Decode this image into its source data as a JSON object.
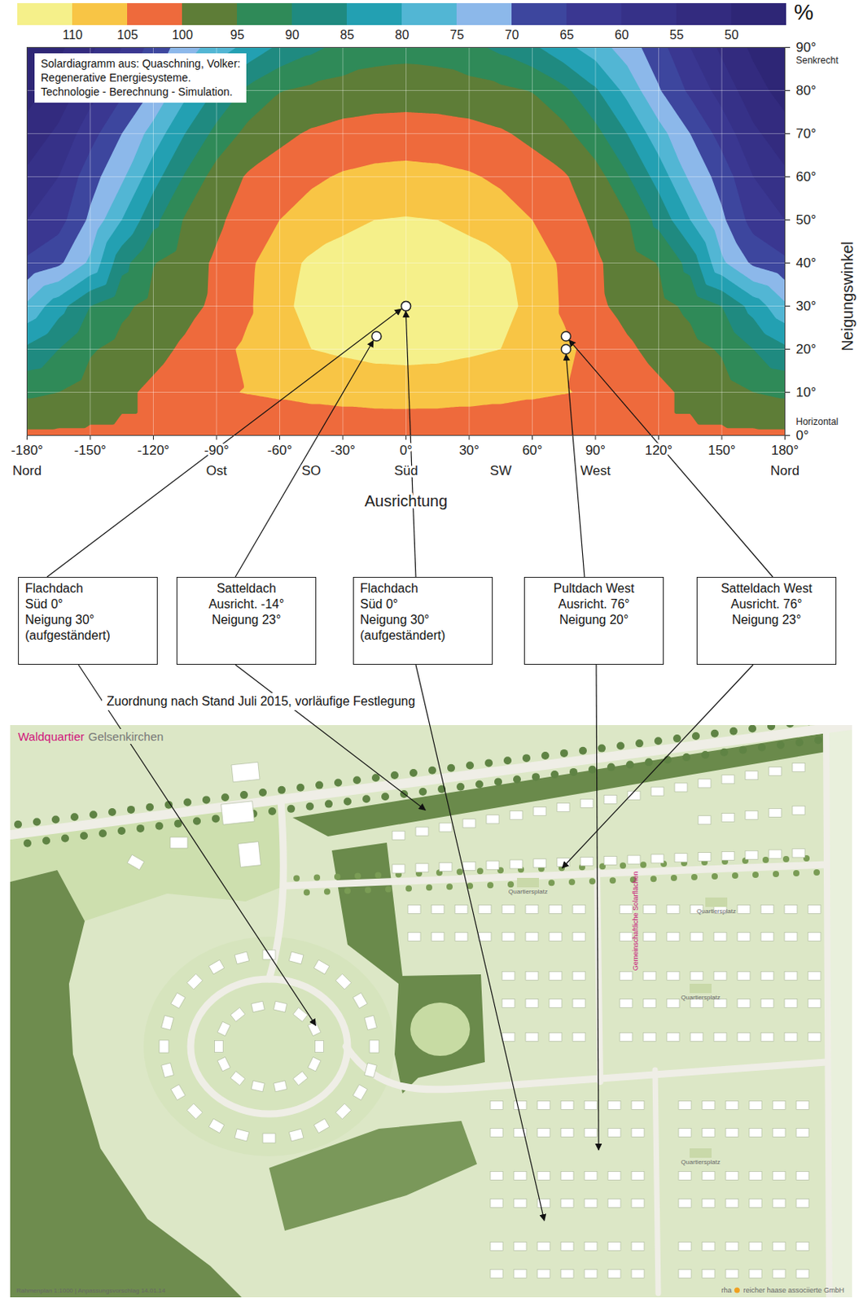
{
  "chart_data": {
    "type": "contour",
    "xlabel": "Ausrichtung",
    "ylabel": "Neigungswinkel",
    "x": [
      -180,
      -165,
      -150,
      -135,
      -120,
      -105,
      -90,
      -75,
      -60,
      -45,
      -30,
      -15,
      0,
      15,
      30,
      45,
      60,
      75,
      90,
      105,
      120,
      135,
      150,
      165,
      180
    ],
    "y": [
      0,
      10,
      20,
      30,
      40,
      50,
      60,
      70,
      80,
      90
    ],
    "z": [
      [
        101,
        101,
        101,
        101,
        101,
        101,
        101,
        101,
        101,
        101,
        101,
        101,
        101,
        101,
        101,
        101,
        101,
        101,
        101,
        101,
        101,
        101,
        101,
        101,
        101
      ],
      [
        94,
        95,
        97,
        99,
        101,
        103,
        104.5,
        105.2,
        105.8,
        106.5,
        107,
        107.4,
        107.5,
        107.4,
        107,
        106.5,
        105.8,
        105.2,
        104.5,
        103,
        101,
        99,
        97,
        95,
        94
      ],
      [
        86,
        90,
        94.5,
        96.5,
        98.5,
        100.8,
        103.5,
        106,
        108.5,
        110,
        110.7,
        111.3,
        111.5,
        111.3,
        110.7,
        110,
        108.5,
        106,
        103.5,
        100.8,
        98.5,
        96.5,
        94.5,
        90,
        86
      ],
      [
        76,
        83,
        90,
        94,
        96.5,
        98.5,
        101,
        104.3,
        108.8,
        111.5,
        112.3,
        112.8,
        113,
        112.8,
        112.3,
        111.5,
        108.8,
        104.3,
        101,
        98.5,
        96.5,
        94,
        90,
        83,
        76
      ],
      [
        66,
        69,
        76,
        88.3,
        94.8,
        97.5,
        100.8,
        104,
        108.2,
        110.8,
        111.7,
        112.3,
        112.5,
        112.3,
        111.7,
        110.8,
        108.2,
        104,
        100.8,
        97.5,
        94.8,
        88.3,
        76,
        69,
        66
      ],
      [
        60,
        63,
        71,
        80,
        88.5,
        95.5,
        99,
        102.5,
        105,
        107,
        109,
        110,
        110.3,
        110,
        109,
        107,
        105,
        102.5,
        99,
        95.5,
        88.5,
        80,
        71,
        63,
        60
      ],
      [
        56,
        60,
        68,
        74,
        83,
        90.5,
        97.2,
        100.5,
        102.3,
        104.2,
        105.5,
        106.2,
        106.5,
        106.2,
        105.5,
        104.2,
        102.3,
        100.5,
        97.2,
        90.5,
        83,
        74,
        68,
        60,
        56
      ],
      [
        52,
        56,
        63,
        70,
        77,
        85,
        91.5,
        96.5,
        98.8,
        100.6,
        101.7,
        102.3,
        102.5,
        102.3,
        101.7,
        100.6,
        98.8,
        96.5,
        91.5,
        85,
        77,
        70,
        63,
        56,
        52
      ],
      [
        48,
        52,
        58,
        64,
        70.5,
        78.5,
        85.7,
        91.2,
        94.8,
        96,
        96.8,
        97.3,
        97.5,
        97.3,
        96.8,
        96,
        94.8,
        91.2,
        85.7,
        78.5,
        70.5,
        64,
        58,
        52,
        48
      ],
      [
        46,
        49,
        54,
        60,
        67,
        72.5,
        77.5,
        81.5,
        86,
        88.8,
        91.5,
        93.1,
        93.5,
        93.1,
        91.5,
        88.8,
        86,
        81.5,
        77.5,
        72.5,
        67,
        60,
        54,
        49,
        46
      ]
    ],
    "xlim": [
      -180,
      180
    ],
    "ylim": [
      0,
      90
    ],
    "xticks": [
      {
        "value": -180,
        "label": "-180°"
      },
      {
        "value": -150,
        "label": "-150°"
      },
      {
        "value": -120,
        "label": "-120°"
      },
      {
        "value": -90,
        "label": "-90°"
      },
      {
        "value": -60,
        "label": "-60°"
      },
      {
        "value": -30,
        "label": "-30°"
      },
      {
        "value": 0,
        "label": "0°"
      },
      {
        "value": 30,
        "label": "30°"
      },
      {
        "value": 60,
        "label": "60°"
      },
      {
        "value": 90,
        "label": "90°"
      },
      {
        "value": 120,
        "label": "120°"
      },
      {
        "value": 150,
        "label": "150°"
      },
      {
        "value": 180,
        "label": "180°"
      }
    ],
    "yticks": [
      {
        "value": 0,
        "label": "0°"
      },
      {
        "value": 10,
        "label": "10°"
      },
      {
        "value": 20,
        "label": "20°"
      },
      {
        "value": 30,
        "label": "30°"
      },
      {
        "value": 40,
        "label": "40°"
      },
      {
        "value": 50,
        "label": "50°"
      },
      {
        "value": 60,
        "label": "60°"
      },
      {
        "value": 70,
        "label": "70°"
      },
      {
        "value": 80,
        "label": "80°"
      },
      {
        "value": 90,
        "label": "90°"
      }
    ],
    "direction_ticks": [
      {
        "value": -180,
        "label": "Nord"
      },
      {
        "value": -90,
        "label": "Ost"
      },
      {
        "value": -45,
        "label": "SO"
      },
      {
        "value": 0,
        "label": "Süd"
      },
      {
        "value": 45,
        "label": "SW"
      },
      {
        "value": 90,
        "label": "West"
      },
      {
        "value": 180,
        "label": "Nord"
      }
    ],
    "annotations": [
      {
        "y": 90,
        "text": "Senkrecht"
      },
      {
        "y": 0,
        "text": "Horizontal"
      }
    ],
    "source_note": [
      "Solardiagramm aus: Quaschning, Volker:",
      "Regenerative Energiesysteme.",
      "Technologie - Berechnung - Simulation."
    ],
    "colorbar": {
      "range": [
        115,
        45
      ],
      "ticks": [
        50,
        55,
        60,
        65,
        70,
        75,
        80,
        85,
        90,
        95,
        100,
        105,
        110
      ],
      "colors": [
        "#2e2676",
        "#332b7f",
        "#363188",
        "#3a3791",
        "#3d469e",
        "#8cb8ea",
        "#52b6d4",
        "#23a0b2",
        "#1f8a80",
        "#2f8a58",
        "#5e7d37",
        "#ee6a3c",
        "#f8c545",
        "#f5f08a"
      ],
      "label": "%"
    },
    "points": [
      {
        "lines": [
          "Flachdach",
          "Süd 0°",
          "Neigung 30°",
          "(aufgeständert)"
        ],
        "x": 0,
        "y": 30
      },
      {
        "lines": [
          "Satteldach",
          "Ausricht. -14°",
          "Neigung 23°"
        ],
        "x": -14,
        "y": 23
      },
      {
        "lines": [
          "Flachdach",
          "Süd 0°",
          "Neigung 30°",
          "(aufgeständert)"
        ],
        "x": 0,
        "y": 30
      },
      {
        "lines": [
          "Pultdach West",
          "Ausricht. 76°",
          "Neigung 20°"
        ],
        "x": 76,
        "y": 20
      },
      {
        "lines": [
          "Satteldach West",
          "Ausricht. 76°",
          "Neigung 23°"
        ],
        "x": 76,
        "y": 23
      }
    ],
    "grid": true
  },
  "caption": "Zuordnung nach Stand Juli 2015, vorläufige Festlegung",
  "map": {
    "title": "Waldquartier",
    "place": "Gelsenkirchen",
    "labels": [
      "Gemeinschaftliche Solarflächen",
      "Quartiersplatz",
      "Quartiersplatz",
      "Quartiersplatz",
      "Quartiersplatz"
    ],
    "footer_left": "Rahmenplan 1:1000 | Anpassungsvorschlag 14.01.14",
    "logo": "rha",
    "firm": "reicher haase associierte GmbH"
  }
}
